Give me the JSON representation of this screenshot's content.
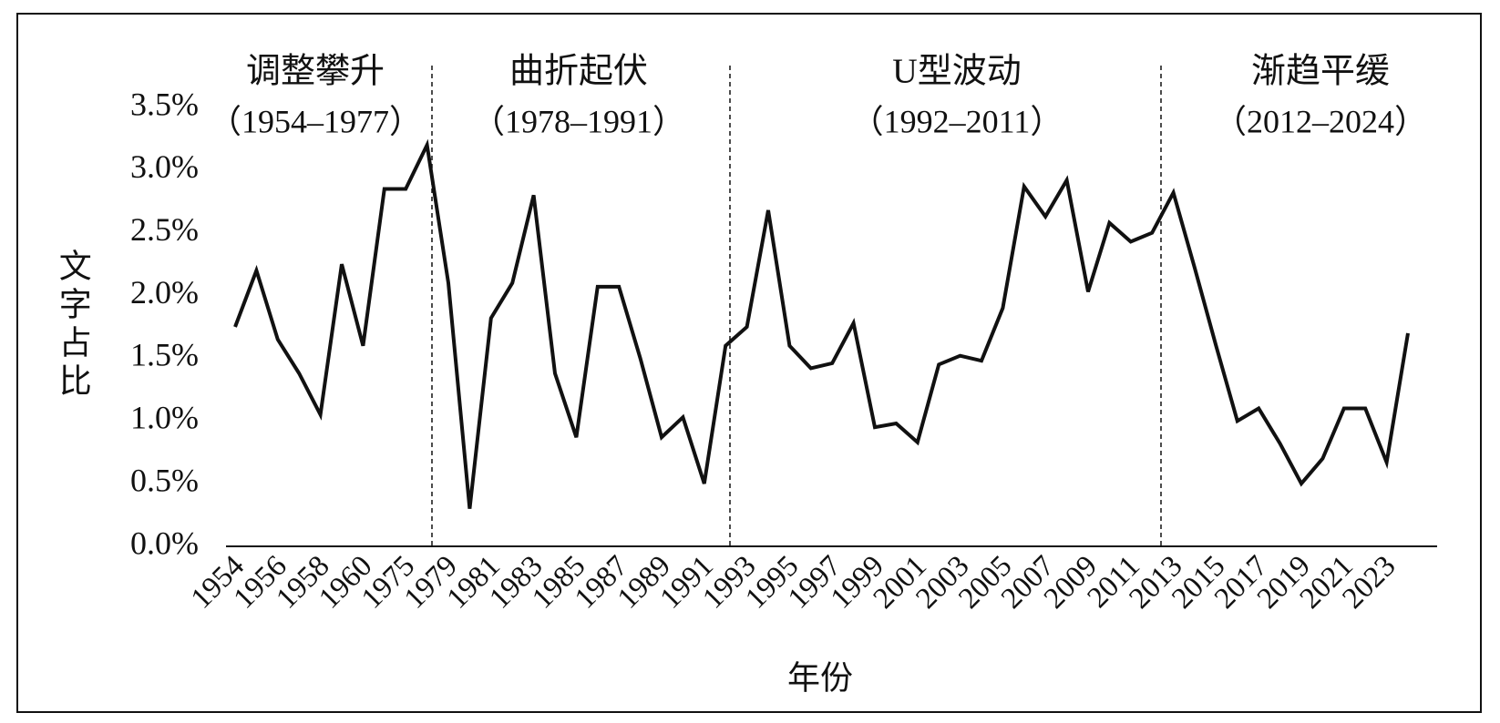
{
  "chart_data": {
    "type": "line",
    "y_label": "文字占比",
    "x_label": "年份",
    "annotations": [
      {
        "name": "调整攀升",
        "range": "（1954–1977）"
      },
      {
        "name": "曲折起伏",
        "range": "（1978–1991）"
      },
      {
        "name": "U型波动",
        "range": "（1992–2011）"
      },
      {
        "name": "渐趋平缓",
        "range": "（2012–2024）"
      }
    ],
    "categories": [
      "1954",
      null,
      "1956",
      null,
      "1958",
      null,
      "1960",
      null,
      "1975",
      null,
      "1979",
      null,
      "1981",
      null,
      "1983",
      null,
      "1985",
      null,
      "1987",
      null,
      "1989",
      null,
      "1991",
      null,
      "1993",
      null,
      "1995",
      null,
      "1997",
      null,
      "1999",
      null,
      "2001",
      null,
      "2003",
      null,
      "2005",
      null,
      "2007",
      null,
      "2009",
      null,
      "2011",
      null,
      "2013",
      null,
      "2015",
      null,
      "2017",
      null,
      "2019",
      null,
      "2021",
      null,
      "2023",
      null
    ],
    "series": [
      {
        "color": "#111111",
        "values": [
          1.75,
          2.2,
          1.65,
          1.38,
          1.05,
          2.25,
          1.6,
          2.85,
          2.85,
          3.2,
          2.1,
          0.3,
          1.82,
          2.1,
          2.8,
          1.38,
          0.87,
          2.07,
          2.07,
          1.5,
          0.87,
          1.03,
          0.5,
          1.6,
          1.75,
          2.68,
          1.6,
          1.42,
          1.46,
          1.78,
          0.95,
          0.98,
          0.83,
          1.45,
          1.52,
          1.48,
          1.9,
          2.87,
          2.63,
          2.92,
          2.03,
          2.58,
          2.43,
          2.5,
          2.82,
          2.22,
          1.6,
          1.0,
          1.1,
          0.82,
          0.5,
          0.7,
          1.1,
          1.1,
          0.67,
          1.7
        ]
      }
    ],
    "ylim": [
      0,
      3.5
    ],
    "yticks": [
      {
        "value": 0,
        "label": "0.0%"
      },
      {
        "value": 0.5,
        "label": "0.5%"
      },
      {
        "value": 1,
        "label": "1.0%"
      },
      {
        "value": 1.5,
        "label": "1.5%"
      },
      {
        "value": 2,
        "label": "2.0%"
      },
      {
        "value": 2.5,
        "label": "2.5%"
      },
      {
        "value": 3,
        "label": "3.0%"
      },
      {
        "value": 3.5,
        "label": "3.5%"
      }
    ],
    "grid": false
  }
}
